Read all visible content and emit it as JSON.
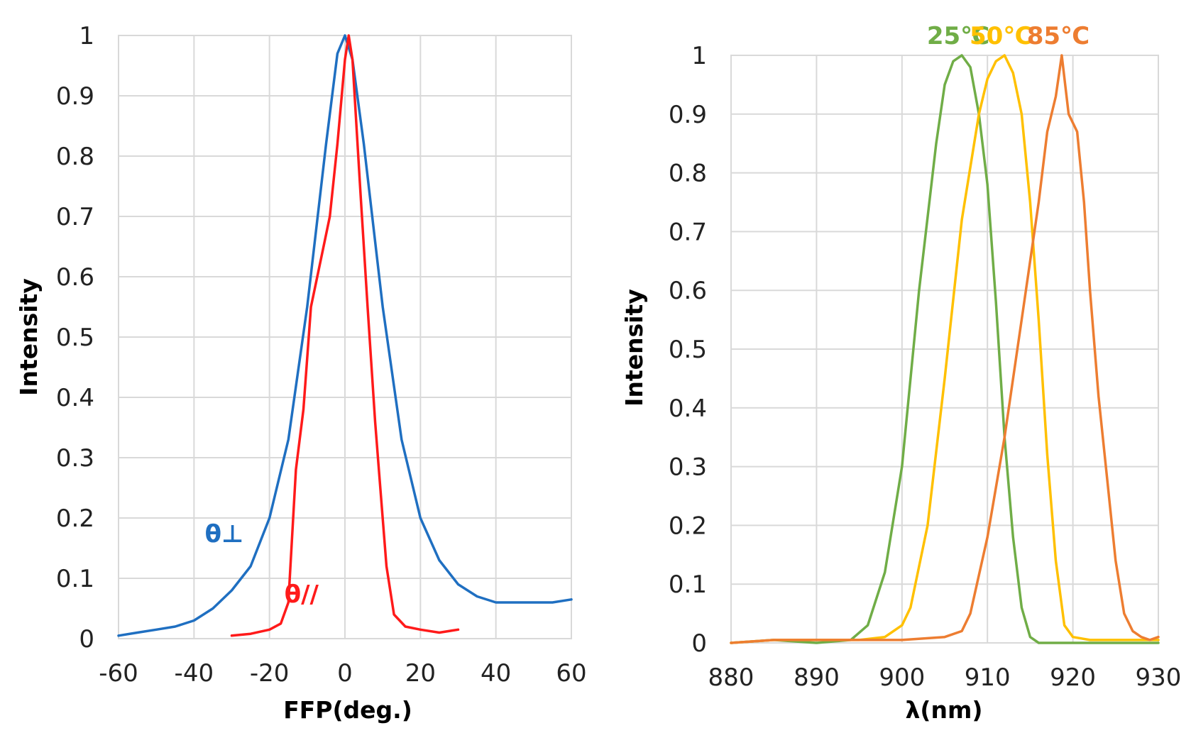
{
  "chart_data": [
    {
      "type": "line",
      "title": "",
      "xlabel": "FFP(deg.)",
      "ylabel": "Intensity",
      "xlim": [
        -60,
        60
      ],
      "ylim": [
        0,
        1
      ],
      "xticks": [
        "-60",
        "-40",
        "-20",
        "0",
        "20",
        "40",
        "60"
      ],
      "yticks": [
        "0",
        "0.1",
        "0.2",
        "0.3",
        "0.4",
        "0.5",
        "0.6",
        "0.7",
        "0.8",
        "0.9",
        "1"
      ],
      "grid": true,
      "series": [
        {
          "name": "θ⊥",
          "color": "#1f6fc1",
          "x": [
            -60,
            -55,
            -50,
            -45,
            -40,
            -35,
            -30,
            -25,
            -20,
            -15,
            -10,
            -5,
            -2,
            0,
            2,
            5,
            10,
            15,
            20,
            25,
            30,
            35,
            40,
            45,
            50,
            55,
            60
          ],
          "y": [
            0.005,
            0.01,
            0.015,
            0.02,
            0.03,
            0.05,
            0.08,
            0.12,
            0.2,
            0.33,
            0.55,
            0.82,
            0.97,
            1.0,
            0.96,
            0.82,
            0.55,
            0.33,
            0.2,
            0.13,
            0.09,
            0.07,
            0.06,
            0.06,
            0.06,
            0.06,
            0.065
          ]
        },
        {
          "name": "θ//",
          "color": "#ff1a1a",
          "x": [
            -30,
            -25,
            -20,
            -17,
            -15,
            -13,
            -11,
            -9,
            -6,
            -4,
            -2,
            0,
            1,
            2,
            4,
            6,
            8,
            9,
            11,
            13,
            16,
            20,
            25,
            30
          ],
          "y": [
            0.005,
            0.008,
            0.015,
            0.025,
            0.06,
            0.28,
            0.38,
            0.55,
            0.64,
            0.7,
            0.82,
            0.96,
            1.0,
            0.96,
            0.75,
            0.55,
            0.36,
            0.28,
            0.12,
            0.04,
            0.02,
            0.015,
            0.01,
            0.015
          ]
        }
      ],
      "annotations": [
        {
          "text": "θ⊥",
          "color": "#1f6fc1",
          "x": -32,
          "y": 0.16
        },
        {
          "text": "θ//",
          "color": "#ff1a1a",
          "x": -11.5,
          "y": 0.06
        }
      ]
    },
    {
      "type": "line",
      "title": "",
      "xlabel": "λ(nm)",
      "ylabel": "Intensity",
      "xlim": [
        880,
        930
      ],
      "ylim": [
        0,
        1
      ],
      "xticks": [
        "880",
        "890",
        "900",
        "910",
        "920",
        "930"
      ],
      "yticks": [
        "0",
        "0.1",
        "0.2",
        "0.3",
        "0.4",
        "0.5",
        "0.6",
        "0.7",
        "0.8",
        "0.9",
        "1"
      ],
      "grid": true,
      "series": [
        {
          "name": "25℃",
          "color": "#70ad47",
          "x": [
            880,
            885,
            890,
            894,
            896,
            898,
            900,
            902,
            904,
            905,
            906,
            907,
            908,
            909,
            910,
            911,
            912,
            913,
            914,
            915,
            916,
            918,
            920,
            925,
            930
          ],
          "y": [
            0.0,
            0.005,
            0.0,
            0.005,
            0.03,
            0.12,
            0.3,
            0.6,
            0.85,
            0.95,
            0.99,
            1.0,
            0.98,
            0.9,
            0.78,
            0.58,
            0.35,
            0.18,
            0.06,
            0.01,
            0.0,
            0.0,
            0.0,
            0.0,
            0.0
          ]
        },
        {
          "name": "50℃",
          "color": "#ffc000",
          "x": [
            880,
            885,
            890,
            895,
            898,
            900,
            901,
            903,
            905,
            907,
            909,
            910,
            911,
            912,
            913,
            914,
            915,
            916,
            917,
            918,
            919,
            920,
            922,
            925,
            930
          ],
          "y": [
            0.0,
            0.005,
            0.005,
            0.005,
            0.01,
            0.03,
            0.06,
            0.2,
            0.45,
            0.72,
            0.9,
            0.96,
            0.99,
            1.0,
            0.97,
            0.9,
            0.75,
            0.55,
            0.32,
            0.14,
            0.03,
            0.01,
            0.005,
            0.005,
            0.005
          ]
        },
        {
          "name": "85℃",
          "color": "#ed7d31",
          "x": [
            880,
            885,
            890,
            895,
            900,
            905,
            907,
            908,
            910,
            912,
            914,
            916,
            917,
            918,
            918.7,
            919.5,
            920.5,
            921.3,
            922,
            923,
            924,
            925,
            926,
            927,
            928,
            929,
            930
          ],
          "y": [
            0.0,
            0.005,
            0.005,
            0.005,
            0.005,
            0.01,
            0.02,
            0.05,
            0.18,
            0.35,
            0.55,
            0.75,
            0.87,
            0.93,
            1.0,
            0.9,
            0.87,
            0.75,
            0.6,
            0.42,
            0.28,
            0.14,
            0.05,
            0.02,
            0.01,
            0.005,
            0.01
          ]
        }
      ],
      "legend": [
        {
          "text": "25℃",
          "color": "#70ad47"
        },
        {
          "text": "50℃",
          "color": "#ffc000"
        },
        {
          "text": "85℃",
          "color": "#ed7d31"
        }
      ]
    }
  ]
}
